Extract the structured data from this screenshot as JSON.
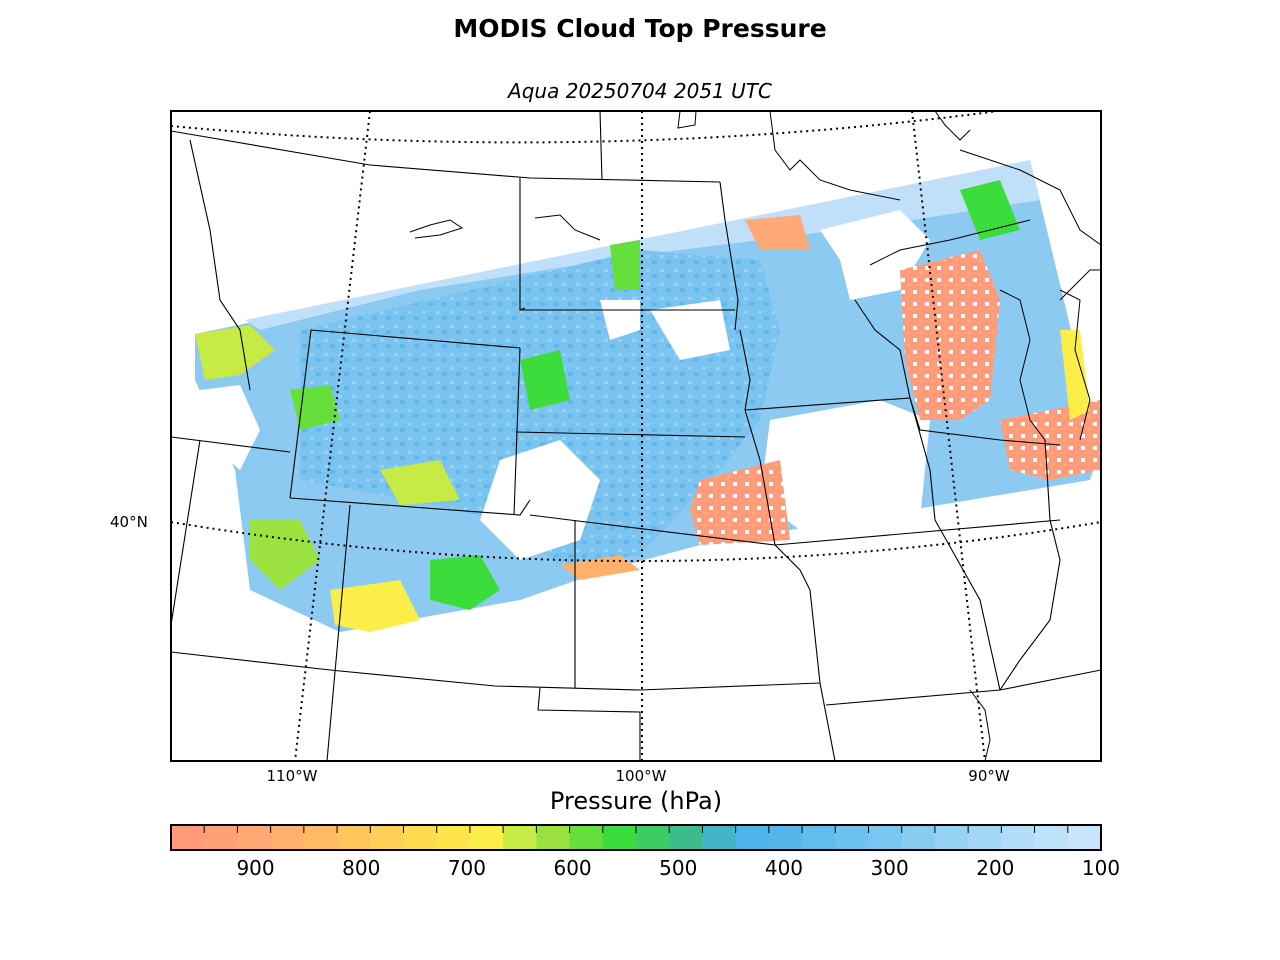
{
  "header": {
    "title": "MODIS Cloud Top Pressure",
    "subtitle": "Aqua 20250704 2051 UTC"
  },
  "map": {
    "projection": "Lambert conformal (central US)",
    "longitude_labels": [
      "110°W",
      "100°W",
      "90°W"
    ],
    "latitude_labels": [
      "40°N"
    ],
    "boundaries": [
      "state lines",
      "Great Lakes coastline",
      "US–Canada border"
    ]
  },
  "colorbar": {
    "label": "Pressure (hPa)",
    "range_hpa": [
      980,
      100
    ],
    "tick_labels": [
      "900",
      "800",
      "700",
      "600",
      "500",
      "400",
      "300",
      "200",
      "100"
    ],
    "tick_values": [
      900,
      800,
      700,
      600,
      500,
      400,
      300,
      200,
      100
    ],
    "colors": [
      "#ff9a7a",
      "#ffa078",
      "#ffa874",
      "#ffb06c",
      "#ffbb64",
      "#ffc55c",
      "#ffd058",
      "#ffdb52",
      "#ffe54c",
      "#fbee48",
      "#c8ea44",
      "#9be240",
      "#66de3c",
      "#3cdc3c",
      "#3ccc64",
      "#3cbc8a",
      "#44b4c8",
      "#4cb4e8",
      "#56b6ec",
      "#62bcee",
      "#6ec2f0",
      "#7ac6f2",
      "#88ccf2",
      "#96d2f4",
      "#a4d6f6",
      "#b2dcf8",
      "#bee2fa",
      "#cae6fc"
    ]
  },
  "colors": {
    "low_cloud": "#ff9a7a",
    "mid_cloud": "#fbee48",
    "transition": "#3cdc3c",
    "high_cloud": "#6ec2f0",
    "very_high_cloud": "#c0e0fa",
    "land_background": "#ffffff",
    "border": "#000000"
  }
}
